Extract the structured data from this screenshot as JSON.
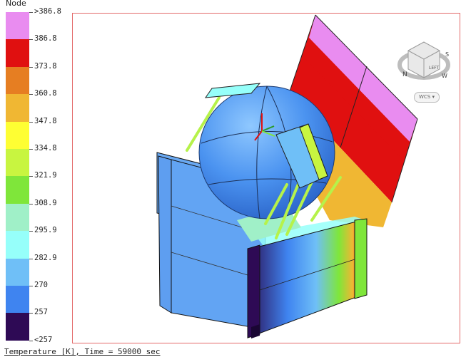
{
  "legend": {
    "title": "Node",
    "labels": [
      ">386.8",
      "386.8",
      "373.8",
      "360.8",
      "347.8",
      "334.8",
      "321.9",
      "308.9",
      "295.9",
      "282.9",
      "270",
      "257",
      "<257"
    ],
    "colors": [
      "#e98cf0",
      "#e01010",
      "#e67e22",
      "#f0b733",
      "#fefe33",
      "#c8f540",
      "#7fe63a",
      "#a0f0c8",
      "#96fffa",
      "#6fbff7",
      "#3f84f0",
      "#2e0a55"
    ]
  },
  "caption": "Temperature [K], Time = 59000 sec",
  "view_cube": {
    "face_label": "LEFT",
    "compass": [
      "N",
      "S",
      "W"
    ],
    "wcs_label": "WCS"
  }
}
